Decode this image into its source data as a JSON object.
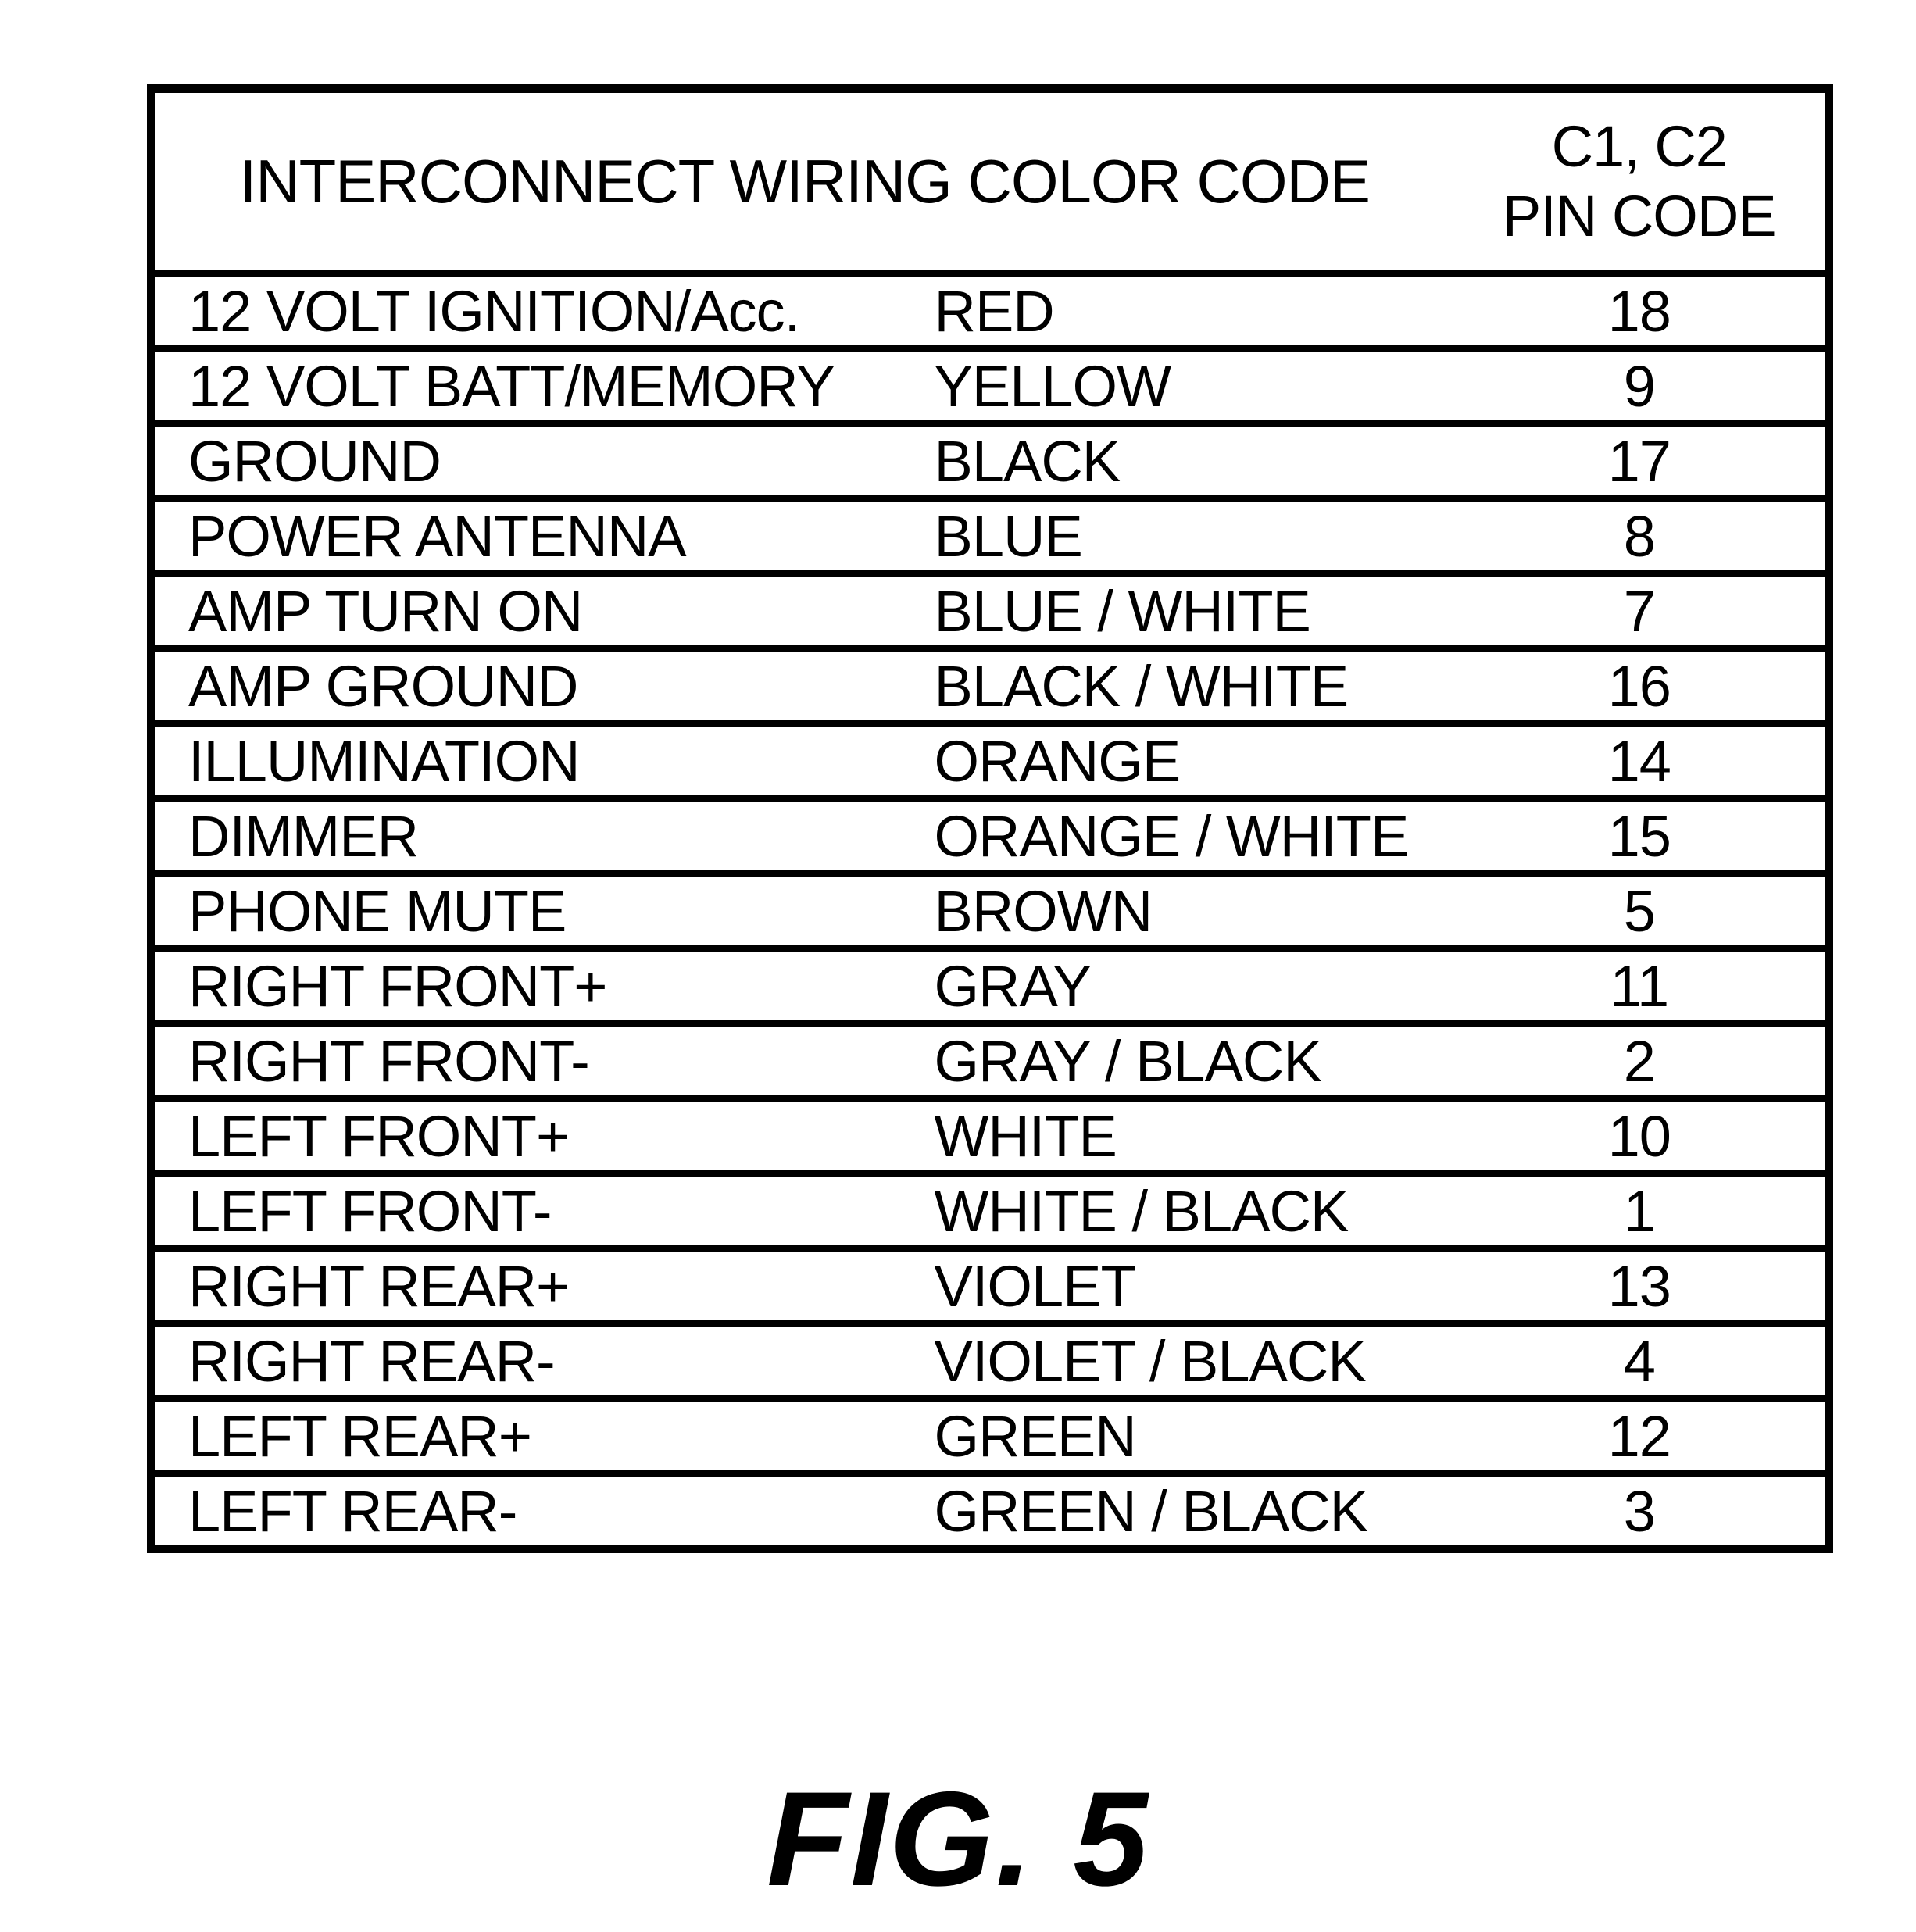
{
  "figure": {
    "caption": "FIG. 5"
  },
  "table": {
    "header": {
      "main": "INTERCONNECT WIRING COLOR CODE",
      "pin_line1": "C1, C2",
      "pin_line2": "PIN CODE"
    },
    "rows": [
      {
        "signal": "12 VOLT IGNITION/Acc.",
        "color": "RED",
        "pin": "18"
      },
      {
        "signal": "12 VOLT BATT/MEMORY",
        "color": "YELLOW",
        "pin": "9"
      },
      {
        "signal": "GROUND",
        "color": "BLACK",
        "pin": "17"
      },
      {
        "signal": "POWER ANTENNA",
        "color": "BLUE",
        "pin": "8"
      },
      {
        "signal": "AMP TURN ON",
        "color": "BLUE / WHITE",
        "pin": "7"
      },
      {
        "signal": "AMP GROUND",
        "color": "BLACK / WHITE",
        "pin": "16"
      },
      {
        "signal": "ILLUMINATION",
        "color": "ORANGE",
        "pin": "14"
      },
      {
        "signal": "DIMMER",
        "color": "ORANGE / WHITE",
        "pin": "15"
      },
      {
        "signal": "PHONE MUTE",
        "color": "BROWN",
        "pin": "5"
      },
      {
        "signal": "RIGHT FRONT+",
        "color": "GRAY",
        "pin": "11"
      },
      {
        "signal": "RIGHT FRONT-",
        "color": "GRAY / BLACK",
        "pin": "2"
      },
      {
        "signal": "LEFT FRONT+",
        "color": "WHITE",
        "pin": "10"
      },
      {
        "signal": "LEFT FRONT-",
        "color": "WHITE / BLACK",
        "pin": "1"
      },
      {
        "signal": "RIGHT REAR+",
        "color": "VIOLET",
        "pin": "13"
      },
      {
        "signal": "RIGHT REAR-",
        "color": "VIOLET / BLACK",
        "pin": "4"
      },
      {
        "signal": "LEFT REAR+",
        "color": "GREEN",
        "pin": "12"
      },
      {
        "signal": "LEFT REAR-",
        "color": "GREEN / BLACK",
        "pin": "3"
      }
    ]
  },
  "colors": {
    "ink": "#000000",
    "paper": "#ffffff"
  }
}
